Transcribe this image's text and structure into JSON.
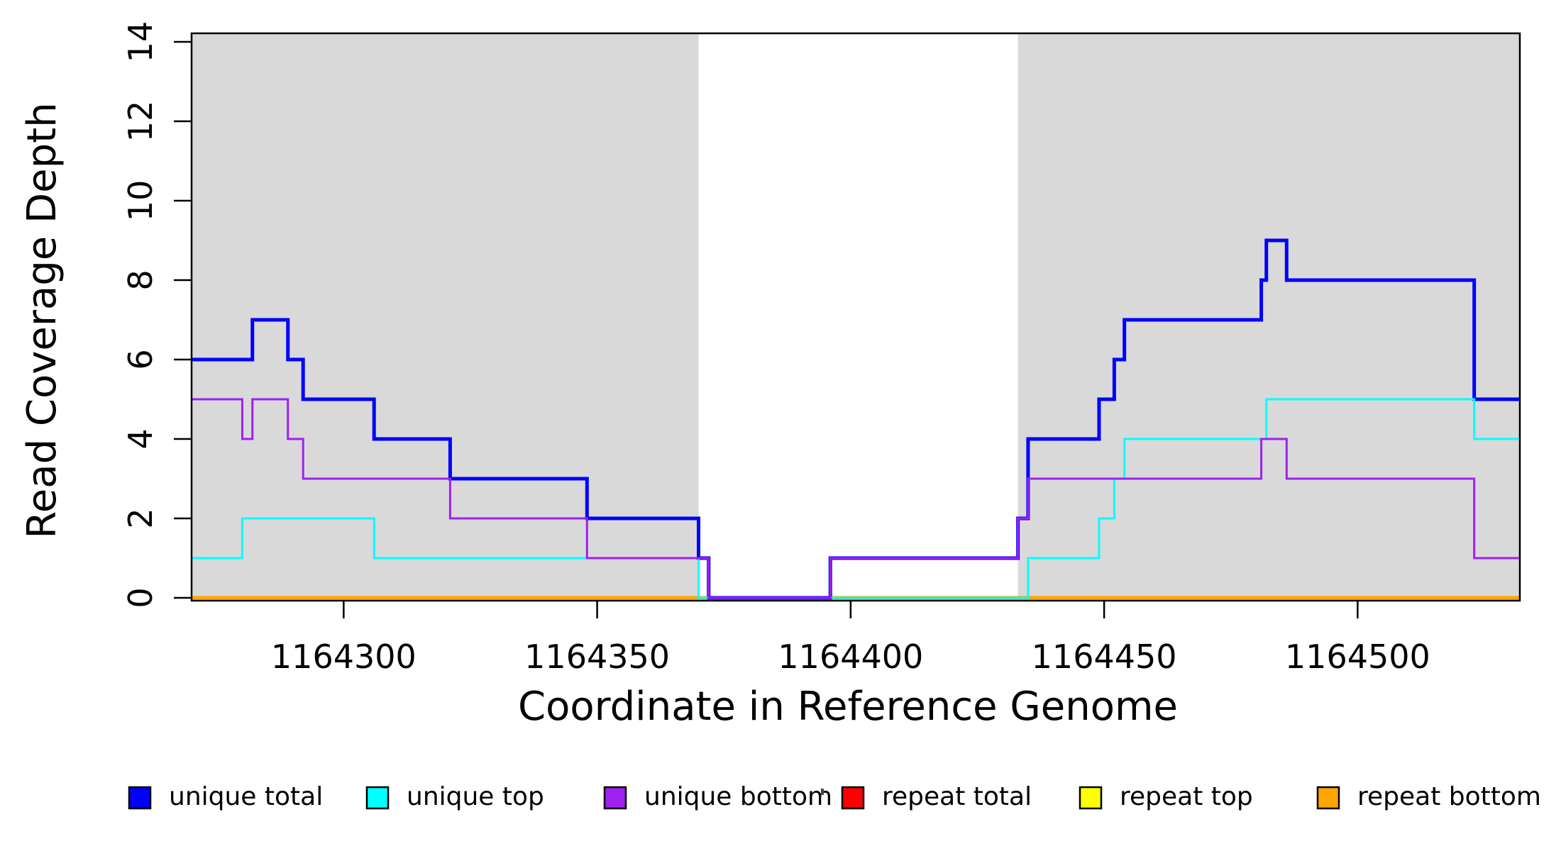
{
  "chart_data": {
    "type": "line",
    "subtype": "step-coverage",
    "title": "",
    "xlabel": "Coordinate in Reference Genome",
    "ylabel": "Read Coverage Depth",
    "xlim": [
      1164270,
      1164532
    ],
    "ylim": [
      0,
      14
    ],
    "xticks": [
      1164300,
      1164350,
      1164400,
      1164450,
      1164500
    ],
    "yticks": [
      0,
      2,
      4,
      6,
      8,
      10,
      12,
      14
    ],
    "grid": false,
    "legend_position": "bottom",
    "shade_color": "#D9D9D9",
    "axis_color": "#000000",
    "shaded_regions": [
      {
        "x0": 1164270,
        "x1": 1164370
      },
      {
        "x0": 1164433,
        "x1": 1164532
      }
    ],
    "series": [
      {
        "name": "unique total",
        "color": "#0000FF",
        "line_width": 5,
        "draw_order": 4,
        "steps": [
          [
            1164270,
            6
          ],
          [
            1164282,
            7
          ],
          [
            1164289,
            6
          ],
          [
            1164292,
            5
          ],
          [
            1164306,
            4
          ],
          [
            1164321,
            3
          ],
          [
            1164348,
            2
          ],
          [
            1164370,
            1
          ],
          [
            1164372,
            0
          ],
          [
            1164396,
            1
          ],
          [
            1164433,
            2
          ],
          [
            1164435,
            4
          ],
          [
            1164449,
            5
          ],
          [
            1164452,
            6
          ],
          [
            1164454,
            7
          ],
          [
            1164481,
            8
          ],
          [
            1164482,
            9
          ],
          [
            1164486,
            8
          ],
          [
            1164523,
            5
          ]
        ]
      },
      {
        "name": "unique top",
        "color": "#00FFFF",
        "line_width": 3,
        "draw_order": 5,
        "steps": [
          [
            1164270,
            1
          ],
          [
            1164280,
            2
          ],
          [
            1164306,
            1
          ],
          [
            1164370,
            0
          ],
          [
            1164435,
            1
          ],
          [
            1164449,
            2
          ],
          [
            1164452,
            3
          ],
          [
            1164454,
            4
          ],
          [
            1164482,
            5
          ],
          [
            1164523,
            4
          ]
        ]
      },
      {
        "name": "unique bottom",
        "color": "#A020F0",
        "line_width": 3,
        "draw_order": 6,
        "steps": [
          [
            1164270,
            5
          ],
          [
            1164280,
            4
          ],
          [
            1164282,
            5
          ],
          [
            1164289,
            4
          ],
          [
            1164292,
            3
          ],
          [
            1164321,
            2
          ],
          [
            1164348,
            1
          ],
          [
            1164372,
            0
          ],
          [
            1164396,
            1
          ],
          [
            1164433,
            2
          ],
          [
            1164435,
            3
          ],
          [
            1164481,
            4
          ],
          [
            1164486,
            3
          ],
          [
            1164523,
            1
          ]
        ]
      },
      {
        "name": "repeat total",
        "color": "#FF0000",
        "line_width": 3,
        "draw_order": 1,
        "steps": [
          [
            1164270,
            0
          ]
        ]
      },
      {
        "name": "repeat top",
        "color": "#FFFF00",
        "line_width": 3,
        "draw_order": 2,
        "steps": [
          [
            1164270,
            0
          ]
        ]
      },
      {
        "name": "repeat bottom",
        "color": "#FFA500",
        "line_width": 5,
        "draw_order": 3,
        "steps": [
          [
            1164270,
            0
          ]
        ]
      }
    ]
  }
}
